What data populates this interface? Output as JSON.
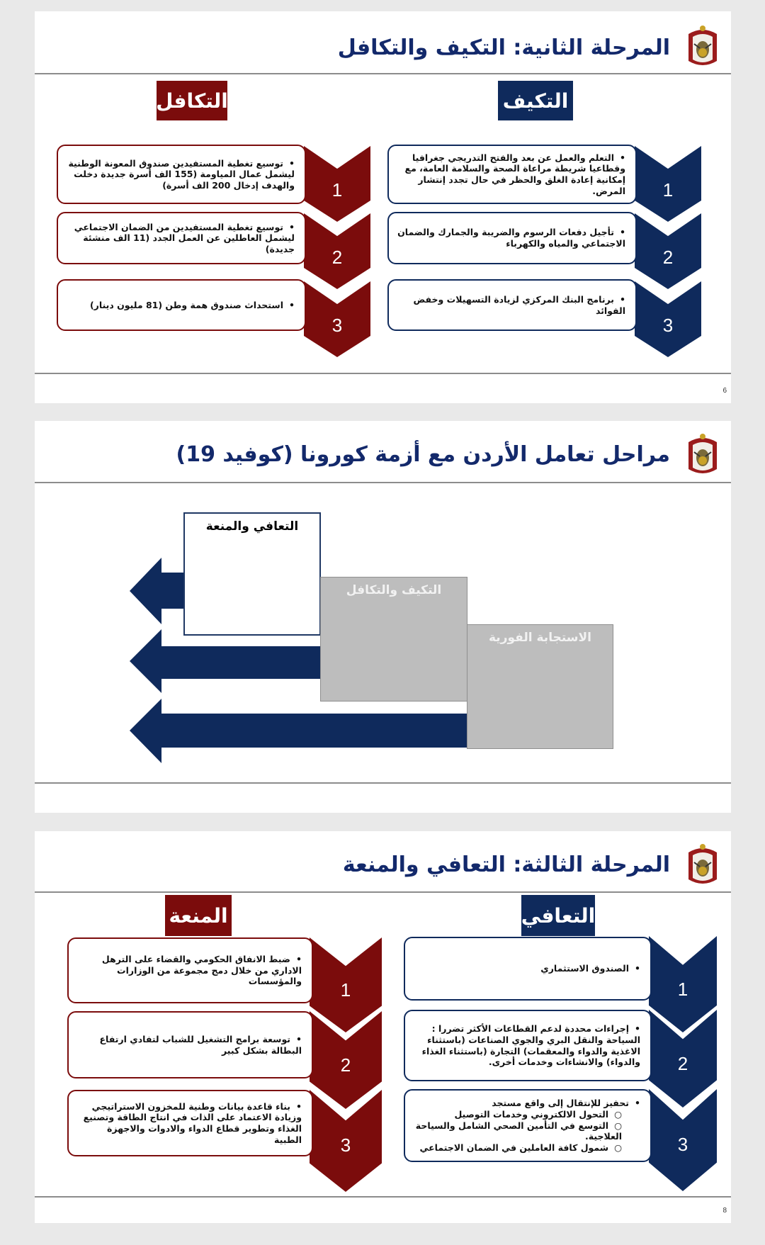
{
  "colors": {
    "navy": "#0f2a5c",
    "maroon": "#7b0c0c",
    "gray": "#bdbdbd"
  },
  "slide1": {
    "title": "المرحلة الثانية: التكيف والتكافل",
    "right_header": "التكيف",
    "left_header": "التكافل",
    "right_items": [
      {
        "num": "1",
        "lines": [
          "التعلم والعمل عن بعد والفتح التدريجي جغرافيا وقطاعيا شريطة مراعاة الصحة والسلامة العامة، مع إمكانية إعادة الغلق والحظر في حال تجدد إنتشار المرض."
        ]
      },
      {
        "num": "2",
        "lines": [
          "تأجيل دفعات الرسوم والضريبة والجمارك والضمان الاجتماعي والمياه والكهرباء"
        ]
      },
      {
        "num": "3",
        "lines": [
          "برنامج البنك المركزي لزيادة التسهيلات وخفض الفوائد"
        ]
      }
    ],
    "left_items": [
      {
        "num": "1",
        "lines": [
          "توسيع تغطية المستفيدين صندوق المعونة الوطنية ليشمل عمال المياومة (155 الف أسرة جديدة دخلت والهدف إدخال 200 الف أسرة)"
        ]
      },
      {
        "num": "2",
        "lines": [
          "توسيع تغطية المستفيدين من الضمان الاجتماعي ليشمل العاطلين عن العمل الجدد (11 الف منشئة جديدة)"
        ]
      },
      {
        "num": "3",
        "lines": [
          "استحداث صندوق همة وطن (81 مليون دينار)"
        ]
      }
    ],
    "page": "6"
  },
  "slide2": {
    "title": "مراحل تعامل الأردن مع أزمة كورونا (كوفيد 19)",
    "phases": [
      "التعافي والمنعة",
      "التكيف والتكافل",
      "الاستجابة الفورية"
    ]
  },
  "slide3": {
    "title": "المرحلة الثالثة: التعافي والمنعة",
    "right_header": "التعافي",
    "left_header": "المنعة",
    "right_items": [
      {
        "num": "1",
        "lines": [
          "الصندوق الاستثماري"
        ]
      },
      {
        "num": "2",
        "lines": [
          "إجراءات محددة لدعم القطاعات الأكثر تضررا : السياحة والنقل البري والجوي الصناعات (باستثناء الاغذية والدواء والمعقمات) التجارة (باستثناء الغذاء والدواء) والانشاءات وخدمات أخرى."
        ]
      },
      {
        "num": "3",
        "lines": [
          "تحفيز للإنتقال إلى واقع مستجد"
        ],
        "subs": [
          "التحول الالكتروني وخدمات التوصيل",
          "التوسع في التأمين الصحي الشامل والسياحة العلاجية.",
          "شمول كافة العاملين في الضمان الاجتماعي"
        ]
      }
    ],
    "left_items": [
      {
        "num": "1",
        "lines": [
          "ضبط الانفاق الحكومي والقضاء على الترهل الاداري من خلال دمج مجموعة من الوزارات والمؤسسات"
        ]
      },
      {
        "num": "2",
        "lines": [
          "توسعة برامج التشغيل للشباب لتفادي ارتفاع البطالة بشكل كبير"
        ]
      },
      {
        "num": "3",
        "lines": [
          "بناء قاعدة بيانات وطنية للمخزون الاستراتيجي وزيادة الاعتماد على الذات في انتاج الطاقة وتصنيع الغذاء وتطوير قطاع الدواء والادوات والاجهزة الطبية"
        ]
      }
    ],
    "page": "8"
  }
}
